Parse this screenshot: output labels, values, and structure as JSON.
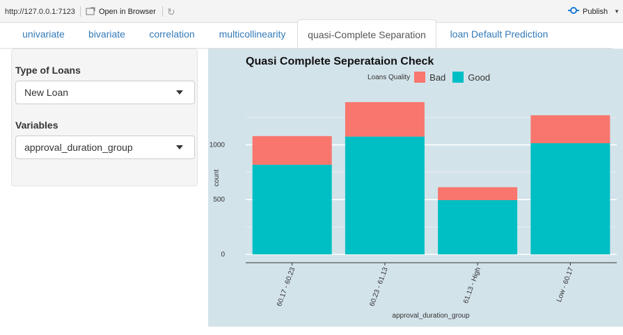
{
  "toolbar": {
    "url": "http://127.0.0.1:7123",
    "open_in_browser": "Open in Browser",
    "publish": "Publish"
  },
  "tabs": [
    {
      "label": "univariate",
      "active": false
    },
    {
      "label": "bivariate",
      "active": false
    },
    {
      "label": "correlation",
      "active": false
    },
    {
      "label": "multicollinearity",
      "active": false
    },
    {
      "label": "quasi-Complete Separation",
      "active": true
    },
    {
      "label": "loan Default Prediction",
      "active": false
    }
  ],
  "sidebar": {
    "loan_type": {
      "label": "Type of Loans",
      "value": "New Loan"
    },
    "variables": {
      "label": "Variables",
      "value": "approval_duration_group"
    }
  },
  "colors": {
    "bad": "#f8766d",
    "good": "#00bfc4",
    "panel": "#d3e3ea",
    "tab_link": "#337ab7"
  },
  "icons": [
    "open-in-browser-icon",
    "refresh-icon",
    "publish-icon",
    "dropdown-caret-icon"
  ],
  "chart_data": {
    "type": "bar",
    "stacked": true,
    "title": "Quasi Complete Seperataion Check",
    "xlabel": "approval_duration_group",
    "ylabel": "count",
    "legend_title": "Loans Quality",
    "legend_position": "top",
    "categories": [
      "60.17 - 60.23",
      "60.23 - 61.13",
      "61.13 - High",
      "Low - 60.17"
    ],
    "series": [
      {
        "name": "Good",
        "values": [
          818,
          1075,
          495,
          1015
        ]
      },
      {
        "name": "Bad",
        "values": [
          262,
          315,
          118,
          255
        ]
      }
    ],
    "yticks": [
      0,
      500,
      1000
    ],
    "ylim": [
      0,
      1400
    ],
    "grid": true
  }
}
